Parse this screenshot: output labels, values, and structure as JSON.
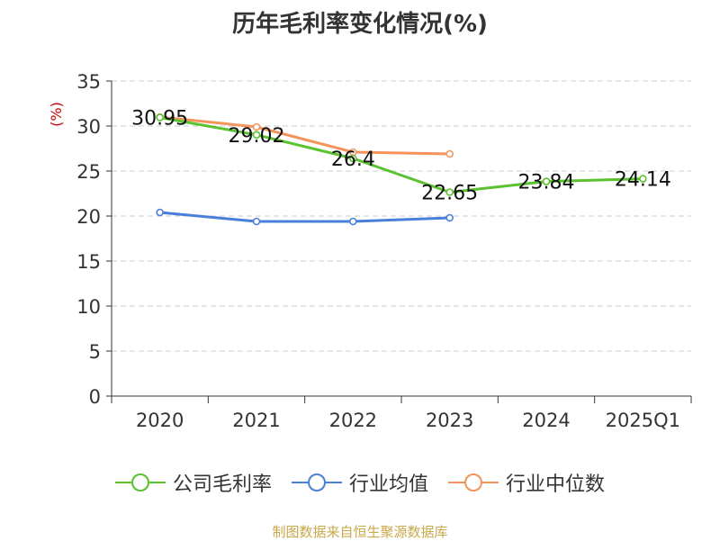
{
  "chart_data": {
    "type": "line",
    "title": "历年毛利率变化情况(%)",
    "ylabel": "(%)",
    "xlabel": "",
    "categories": [
      "2020",
      "2021",
      "2022",
      "2023",
      "2024",
      "2025Q1"
    ],
    "ylim": [
      0,
      35
    ],
    "yticks": [
      0,
      5,
      10,
      15,
      20,
      25,
      30,
      35
    ],
    "grid": true,
    "legend_position": "bottom",
    "series": [
      {
        "name": "公司毛利率",
        "color": "#5ac12f",
        "values": [
          30.95,
          29.02,
          26.4,
          22.65,
          23.84,
          24.14
        ],
        "labels": [
          "30.95",
          "29.02",
          "26.4",
          "22.65",
          "23.84",
          "24.14"
        ]
      },
      {
        "name": "行业均值",
        "color": "#4a7fd9",
        "values": [
          20.4,
          19.4,
          19.4,
          19.8,
          null,
          null
        ]
      },
      {
        "name": "行业中位数",
        "color": "#f5945a",
        "values": [
          31.0,
          29.9,
          27.1,
          26.9,
          null,
          null
        ]
      }
    ]
  },
  "footer": {
    "source": "制图数据来自恒生聚源数据库"
  },
  "colors": {
    "ylabel": "#cc0000",
    "axis": "#333333",
    "grid": "#cccccc",
    "source": "#c8a84a"
  }
}
